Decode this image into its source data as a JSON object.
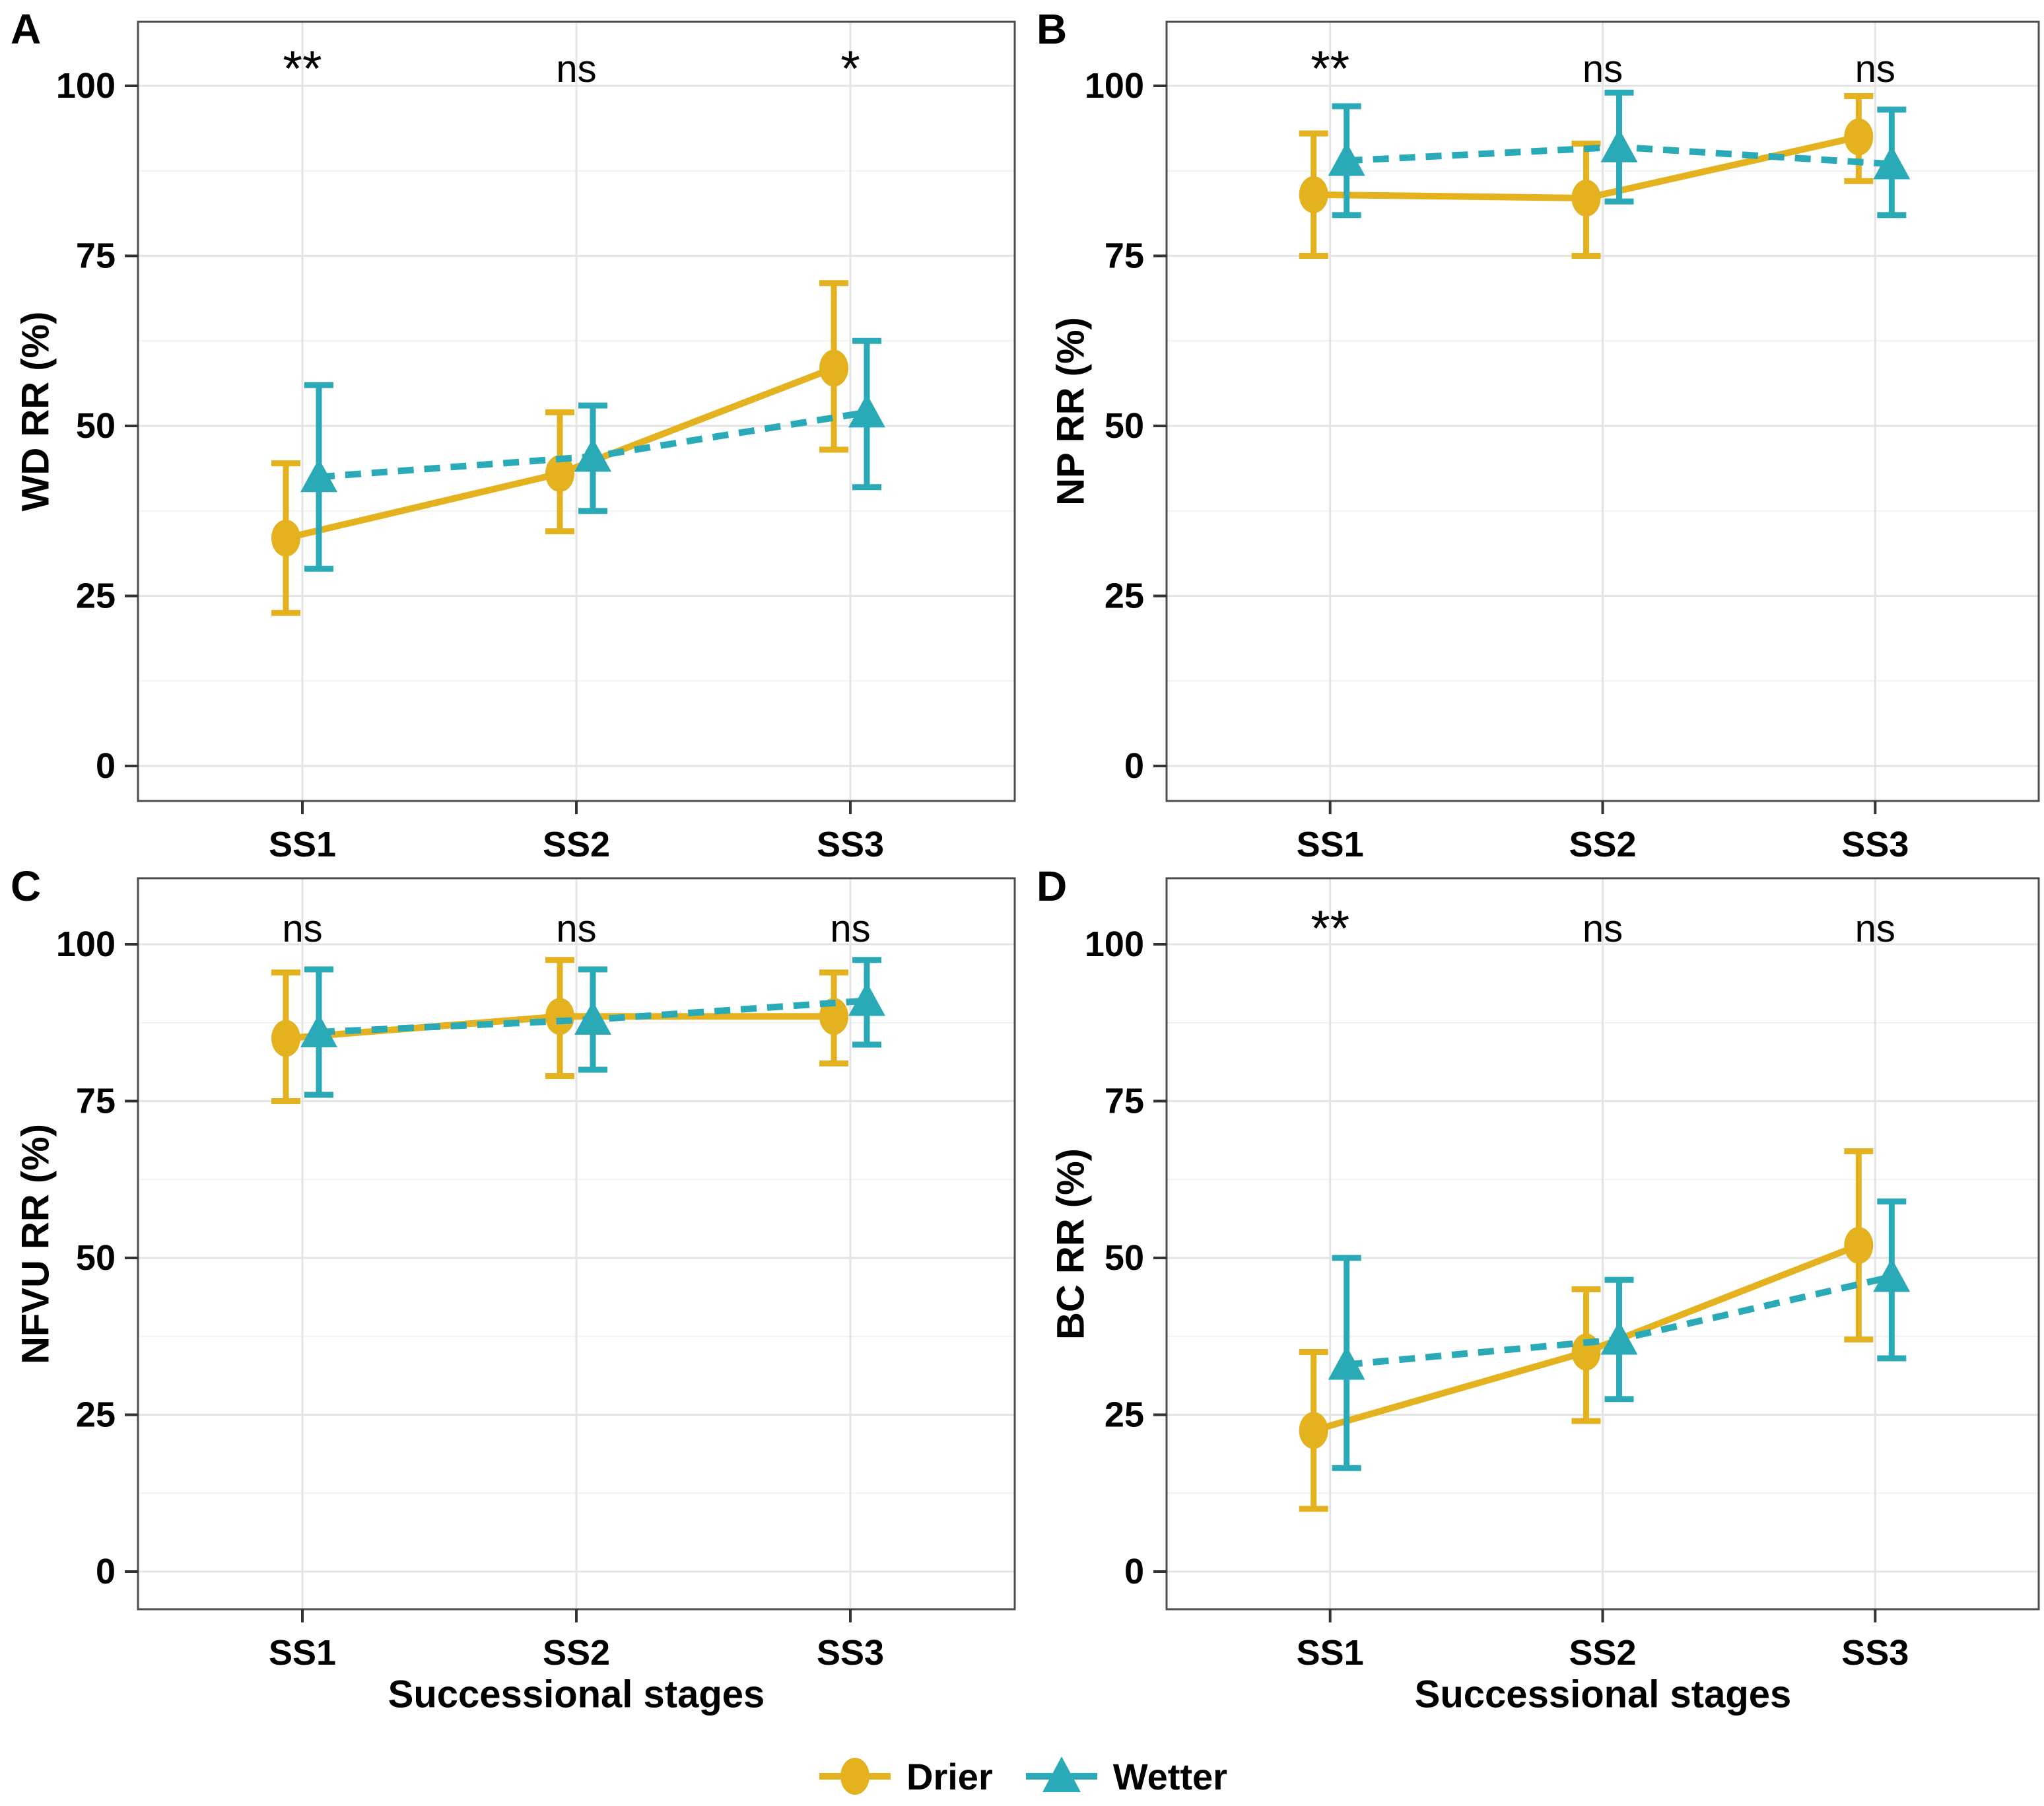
{
  "x_axis_title": "Successional stages",
  "legend": {
    "items": [
      {
        "label": "Drier",
        "color": "#E3B21E",
        "marker": "circle",
        "linestyle": "solid"
      },
      {
        "label": "Wetter",
        "color": "#2AAAB6",
        "marker": "triangle",
        "linestyle": "dashed"
      }
    ]
  },
  "style": {
    "major_grid_color": "#E4E4E4",
    "minor_grid_color": "#F1F1F1",
    "panel_border_color": "#4D4D4D",
    "tick_color": "#333333",
    "text_color": "#000000",
    "background": "#FFFFFF"
  },
  "chart_data": [
    {
      "type": "line",
      "panel_label": "A",
      "ylabel": "WD RR (%)",
      "xlabel": "",
      "categories": [
        "SS1",
        "SS2",
        "SS3"
      ],
      "significance": [
        "**",
        "ns",
        "*"
      ],
      "yticks": [
        0,
        25,
        50,
        75,
        100
      ],
      "ylim": [
        -6,
        108
      ],
      "grid": true,
      "legend_position": "bottom",
      "series": [
        {
          "name": "Drier",
          "color": "#E3B21E",
          "marker": "circle",
          "linestyle": "solid",
          "values": [
            33.5,
            43,
            58.5
          ],
          "lower": [
            22.5,
            34.5,
            46.5
          ],
          "upper": [
            44.5,
            52,
            71
          ]
        },
        {
          "name": "Wetter",
          "color": "#2AAAB6",
          "marker": "triangle",
          "linestyle": "dashed",
          "values": [
            42.5,
            45.5,
            52
          ],
          "lower": [
            29,
            37.5,
            41
          ],
          "upper": [
            56,
            53,
            62.5
          ]
        }
      ]
    },
    {
      "type": "line",
      "panel_label": "B",
      "ylabel": "NP RR (%)",
      "xlabel": "",
      "categories": [
        "SS1",
        "SS2",
        "SS3"
      ],
      "significance": [
        "**",
        "ns",
        "ns"
      ],
      "yticks": [
        0,
        25,
        50,
        75,
        100
      ],
      "ylim": [
        -6,
        108
      ],
      "grid": true,
      "legend_position": "bottom",
      "series": [
        {
          "name": "Drier",
          "color": "#E3B21E",
          "marker": "circle",
          "linestyle": "solid",
          "values": [
            84,
            83.5,
            92.5
          ],
          "lower": [
            75,
            75,
            86
          ],
          "upper": [
            93,
            91.5,
            98.5
          ]
        },
        {
          "name": "Wetter",
          "color": "#2AAAB6",
          "marker": "triangle",
          "linestyle": "dashed",
          "values": [
            89,
            91,
            88.5
          ],
          "lower": [
            81,
            83,
            81
          ],
          "upper": [
            97,
            99,
            96.5
          ]
        }
      ]
    },
    {
      "type": "line",
      "panel_label": "C",
      "ylabel": "NFVU RR (%)",
      "xlabel": "Successional stages",
      "categories": [
        "SS1",
        "SS2",
        "SS3"
      ],
      "significance": [
        "ns",
        "ns",
        "ns"
      ],
      "yticks": [
        0,
        25,
        50,
        75,
        100
      ],
      "ylim": [
        -6,
        108
      ],
      "grid": true,
      "legend_position": "bottom",
      "series": [
        {
          "name": "Drier",
          "color": "#E3B21E",
          "marker": "circle",
          "linestyle": "solid",
          "values": [
            85,
            88.5,
            88.5
          ],
          "lower": [
            75,
            79,
            81
          ],
          "upper": [
            95.5,
            97.5,
            95.5
          ]
        },
        {
          "name": "Wetter",
          "color": "#2AAAB6",
          "marker": "triangle",
          "linestyle": "dashed",
          "values": [
            86,
            88,
            91
          ],
          "lower": [
            76,
            80,
            84
          ],
          "upper": [
            96,
            96,
            97.5
          ]
        }
      ]
    },
    {
      "type": "line",
      "panel_label": "D",
      "ylabel": "BC RR (%)",
      "xlabel": "Successional stages",
      "categories": [
        "SS1",
        "SS2",
        "SS3"
      ],
      "significance": [
        "**",
        "ns",
        "ns"
      ],
      "yticks": [
        0,
        25,
        50,
        75,
        100
      ],
      "ylim": [
        -6,
        108
      ],
      "grid": true,
      "legend_position": "bottom",
      "series": [
        {
          "name": "Drier",
          "color": "#E3B21E",
          "marker": "circle",
          "linestyle": "solid",
          "values": [
            22.5,
            35,
            52
          ],
          "lower": [
            10,
            24,
            37
          ],
          "upper": [
            35,
            45,
            67
          ]
        },
        {
          "name": "Wetter",
          "color": "#2AAAB6",
          "marker": "triangle",
          "linestyle": "dashed",
          "values": [
            33,
            37,
            47
          ],
          "lower": [
            16.5,
            27.5,
            34
          ],
          "upper": [
            50,
            46.5,
            59
          ]
        }
      ]
    }
  ]
}
